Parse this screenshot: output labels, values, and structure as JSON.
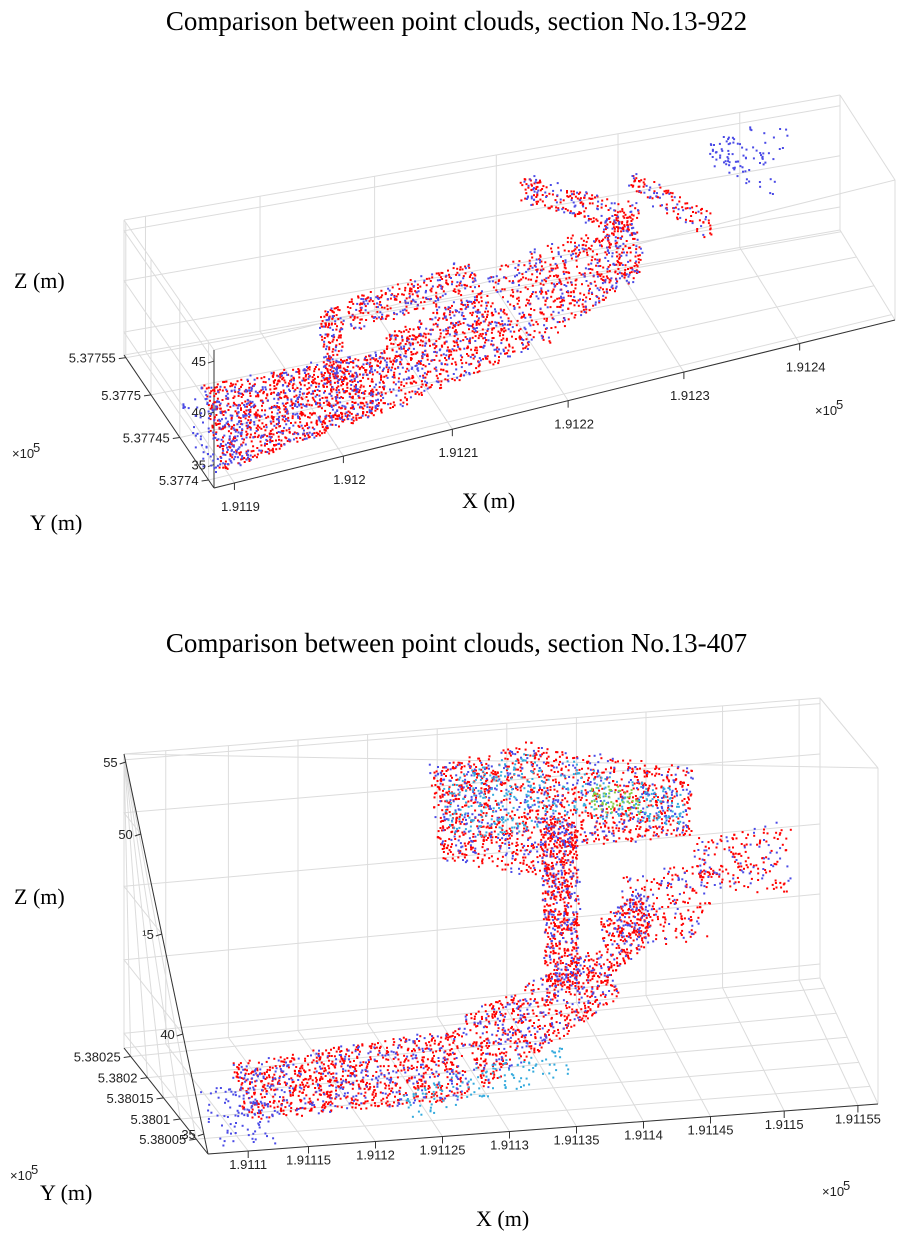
{
  "chart_data": [
    {
      "type": "scatter",
      "title": "Comparison between point clouds, section No.13-922",
      "xlabel": "X (m)",
      "ylabel": "Y (m)",
      "zlabel": "Z (m)",
      "x_ticks": [
        "1.9119",
        "1.912",
        "1.9121",
        "1.9122",
        "1.9123",
        "1.9124"
      ],
      "x_exponent": "×10",
      "x_exponent_power": "5",
      "y_ticks": [
        "5.3774",
        "5.37745",
        "5.3775",
        "5.37755"
      ],
      "y_exponent": "×10",
      "y_exponent_power": "5",
      "z_ticks": [
        "35",
        "40",
        "45"
      ],
      "xlim": [
        191185,
        191245
      ],
      "ylim": [
        537738,
        537758
      ],
      "zlim": [
        33,
        47
      ],
      "grid": true,
      "series": [
        {
          "color": "#ff0000"
        },
        {
          "color": "#4a4ae6"
        }
      ]
    },
    {
      "type": "scatter",
      "title": "Comparison between point clouds, section No.13-407",
      "xlabel": "X (m)",
      "ylabel": "Y (m)",
      "zlabel": "Z (m)",
      "x_ticks": [
        "1.9111",
        "1.91115",
        "1.9112",
        "1.91125",
        "1.9113",
        "1.91135",
        "1.9114",
        "1.91145",
        "1.9115",
        "1.91155"
      ],
      "x_exponent": "×10",
      "x_exponent_power": "5",
      "y_ticks": [
        "5.38005",
        "5.3801",
        "5.38015",
        "5.3802",
        "5.38025"
      ],
      "y_exponent": "×10",
      "y_exponent_power": "5",
      "z_ticks": [
        "35",
        "40",
        "¹5",
        "50",
        "55"
      ],
      "xlim": [
        191105,
        191157
      ],
      "ylim": [
        538003,
        538027
      ],
      "zlim": [
        33,
        56
      ],
      "grid": true,
      "series": [
        {
          "color": "#ff0000"
        },
        {
          "color": "#4a4ae6"
        },
        {
          "color": "#33aadd"
        },
        {
          "color": "#88cc44"
        }
      ]
    }
  ]
}
